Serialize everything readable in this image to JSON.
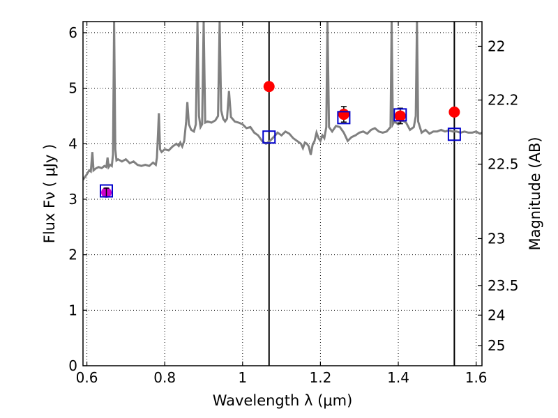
{
  "chart_data": {
    "type": "line",
    "xlabel": "Wavelength  λ (μm)",
    "ylabel": "Flux  Fν  ( μJy )",
    "y2label": "Magnitude (AB)",
    "xlim": [
      0.59,
      1.615
    ],
    "ylim": [
      0,
      6.2
    ],
    "grid": true,
    "x_ticks": [
      0.6,
      0.8,
      1.0,
      1.2,
      1.4,
      1.6
    ],
    "x_tick_labels": [
      "0.6",
      "0.8",
      "1",
      "1.2",
      "1.4",
      "1.6"
    ],
    "y_ticks": [
      0,
      1,
      2,
      3,
      4,
      5,
      6
    ],
    "y_tick_labels": [
      "0",
      "1",
      "2",
      "3",
      "4",
      "5",
      "6"
    ],
    "y2_ticks": [
      {
        "mag": 22,
        "label": "22"
      },
      {
        "mag": 22.2,
        "label": "22.2"
      },
      {
        "mag": 22.5,
        "label": "22.5"
      },
      {
        "mag": 23,
        "label": "23"
      },
      {
        "mag": 23.5,
        "label": "23.5"
      },
      {
        "mag": 24,
        "label": "24"
      },
      {
        "mag": 25,
        "label": "25"
      }
    ],
    "vertical_lines_x": [
      1.068,
      1.544
    ],
    "series": [
      {
        "kind": "spectrum",
        "color": "#808080",
        "points": [
          [
            0.59,
            3.35
          ],
          [
            0.6,
            3.45
          ],
          [
            0.606,
            3.52
          ],
          [
            0.61,
            3.5
          ],
          [
            0.614,
            3.85
          ],
          [
            0.617,
            3.52
          ],
          [
            0.622,
            3.55
          ],
          [
            0.63,
            3.58
          ],
          [
            0.638,
            3.56
          ],
          [
            0.645,
            3.6
          ],
          [
            0.65,
            3.58
          ],
          [
            0.653,
            3.75
          ],
          [
            0.656,
            3.58
          ],
          [
            0.66,
            3.62
          ],
          [
            0.664,
            3.6
          ],
          [
            0.667,
            3.8
          ],
          [
            0.67,
            6.2
          ],
          [
            0.673,
            3.9
          ],
          [
            0.676,
            3.7
          ],
          [
            0.68,
            3.72
          ],
          [
            0.69,
            3.68
          ],
          [
            0.7,
            3.72
          ],
          [
            0.71,
            3.65
          ],
          [
            0.72,
            3.68
          ],
          [
            0.73,
            3.62
          ],
          [
            0.74,
            3.6
          ],
          [
            0.75,
            3.62
          ],
          [
            0.76,
            3.6
          ],
          [
            0.77,
            3.66
          ],
          [
            0.777,
            3.62
          ],
          [
            0.78,
            3.75
          ],
          [
            0.785,
            4.55
          ],
          [
            0.788,
            3.9
          ],
          [
            0.792,
            3.85
          ],
          [
            0.8,
            3.9
          ],
          [
            0.81,
            3.88
          ],
          [
            0.82,
            3.95
          ],
          [
            0.83,
            4.0
          ],
          [
            0.836,
            3.96
          ],
          [
            0.84,
            4.02
          ],
          [
            0.845,
            3.95
          ],
          [
            0.85,
            4.05
          ],
          [
            0.855,
            4.4
          ],
          [
            0.858,
            4.75
          ],
          [
            0.862,
            4.35
          ],
          [
            0.868,
            4.25
          ],
          [
            0.875,
            4.22
          ],
          [
            0.88,
            4.35
          ],
          [
            0.884,
            6.2
          ],
          [
            0.888,
            4.5
          ],
          [
            0.892,
            4.3
          ],
          [
            0.896,
            4.35
          ],
          [
            0.9,
            6.2
          ],
          [
            0.904,
            4.38
          ],
          [
            0.91,
            4.4
          ],
          [
            0.92,
            4.38
          ],
          [
            0.93,
            4.42
          ],
          [
            0.937,
            4.5
          ],
          [
            0.941,
            6.2
          ],
          [
            0.945,
            4.6
          ],
          [
            0.95,
            4.45
          ],
          [
            0.955,
            4.4
          ],
          [
            0.96,
            4.45
          ],
          [
            0.965,
            4.95
          ],
          [
            0.97,
            4.48
          ],
          [
            0.98,
            4.4
          ],
          [
            0.99,
            4.38
          ],
          [
            1.0,
            4.35
          ],
          [
            1.01,
            4.28
          ],
          [
            1.02,
            4.3
          ],
          [
            1.03,
            4.2
          ],
          [
            1.04,
            4.15
          ],
          [
            1.05,
            4.05
          ],
          [
            1.06,
            4.0
          ],
          [
            1.07,
            4.05
          ],
          [
            1.08,
            4.12
          ],
          [
            1.09,
            4.2
          ],
          [
            1.1,
            4.15
          ],
          [
            1.11,
            4.22
          ],
          [
            1.12,
            4.18
          ],
          [
            1.13,
            4.1
          ],
          [
            1.14,
            4.05
          ],
          [
            1.15,
            4.0
          ],
          [
            1.155,
            3.92
          ],
          [
            1.16,
            4.02
          ],
          [
            1.165,
            4.0
          ],
          [
            1.17,
            3.95
          ],
          [
            1.175,
            3.8
          ],
          [
            1.18,
            3.98
          ],
          [
            1.185,
            4.05
          ],
          [
            1.19,
            4.2
          ],
          [
            1.195,
            4.1
          ],
          [
            1.2,
            4.05
          ],
          [
            1.205,
            4.15
          ],
          [
            1.21,
            4.1
          ],
          [
            1.215,
            4.3
          ],
          [
            1.218,
            6.2
          ],
          [
            1.222,
            4.3
          ],
          [
            1.23,
            4.22
          ],
          [
            1.24,
            4.32
          ],
          [
            1.25,
            4.3
          ],
          [
            1.26,
            4.2
          ],
          [
            1.27,
            4.05
          ],
          [
            1.28,
            4.12
          ],
          [
            1.29,
            4.15
          ],
          [
            1.3,
            4.2
          ],
          [
            1.31,
            4.22
          ],
          [
            1.32,
            4.18
          ],
          [
            1.33,
            4.25
          ],
          [
            1.34,
            4.28
          ],
          [
            1.35,
            4.22
          ],
          [
            1.36,
            4.2
          ],
          [
            1.37,
            4.22
          ],
          [
            1.38,
            4.3
          ],
          [
            1.383,
            6.2
          ],
          [
            1.386,
            4.35
          ],
          [
            1.39,
            4.4
          ],
          [
            1.4,
            4.35
          ],
          [
            1.41,
            4.42
          ],
          [
            1.42,
            4.38
          ],
          [
            1.43,
            4.25
          ],
          [
            1.44,
            4.3
          ],
          [
            1.445,
            4.5
          ],
          [
            1.448,
            6.2
          ],
          [
            1.451,
            4.4
          ],
          [
            1.46,
            4.2
          ],
          [
            1.47,
            4.25
          ],
          [
            1.48,
            4.18
          ],
          [
            1.49,
            4.22
          ],
          [
            1.5,
            4.22
          ],
          [
            1.51,
            4.25
          ],
          [
            1.52,
            4.22
          ],
          [
            1.53,
            4.24
          ],
          [
            1.54,
            4.22
          ],
          [
            1.55,
            4.22
          ],
          [
            1.56,
            4.2
          ],
          [
            1.57,
            4.22
          ],
          [
            1.58,
            4.2
          ],
          [
            1.59,
            4.2
          ],
          [
            1.6,
            4.22
          ],
          [
            1.605,
            4.2
          ],
          [
            1.61,
            4.18
          ],
          [
            1.615,
            4.2
          ]
        ]
      },
      {
        "kind": "open-squares",
        "color": "#0000cc",
        "points": [
          [
            0.65,
            3.15
          ],
          [
            1.068,
            4.12
          ],
          [
            1.26,
            4.47
          ],
          [
            1.405,
            4.52
          ],
          [
            1.544,
            4.17
          ]
        ]
      },
      {
        "kind": "filled-circles",
        "color": "#ff0000",
        "points": [
          [
            1.068,
            5.03
          ],
          [
            1.26,
            4.53
          ],
          [
            1.405,
            4.5
          ],
          [
            1.544,
            4.57
          ]
        ]
      },
      {
        "kind": "filled-circle-errorbar",
        "color": "#cc00cc",
        "points": [
          [
            0.65,
            3.12,
            0.08
          ]
        ]
      },
      {
        "kind": "errorbars",
        "color": "#000000",
        "points": [
          [
            1.26,
            4.53,
            0.14
          ],
          [
            1.405,
            4.5,
            0.14
          ]
        ]
      }
    ]
  }
}
